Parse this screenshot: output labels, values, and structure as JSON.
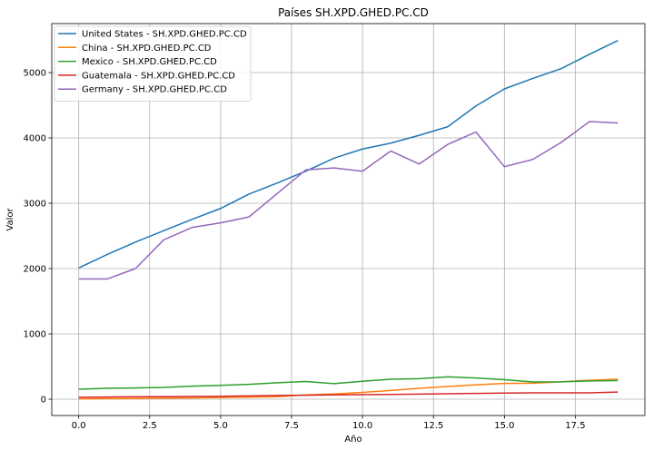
{
  "chart_data": {
    "type": "line",
    "title": "Países SH.XPD.GHED.PC.CD",
    "xlabel": "Año",
    "ylabel": "Valor",
    "xlim": [
      -0.95,
      19.95
    ],
    "ylim": [
      -250,
      5750
    ],
    "x_ticks": [
      0.0,
      2.5,
      5.0,
      7.5,
      10.0,
      12.5,
      15.0,
      17.5
    ],
    "x_tick_labels": [
      "0.0",
      "2.5",
      "5.0",
      "7.5",
      "10.0",
      "12.5",
      "15.0",
      "17.5"
    ],
    "y_ticks": [
      0,
      1000,
      2000,
      3000,
      4000,
      5000
    ],
    "y_tick_labels": [
      "0",
      "1000",
      "2000",
      "3000",
      "4000",
      "5000"
    ],
    "grid": true,
    "legend_position": "top-left",
    "x": [
      0,
      1,
      2,
      3,
      4,
      5,
      6,
      7,
      8,
      9,
      10,
      11,
      12,
      13,
      14,
      15,
      16,
      17,
      18,
      19
    ],
    "series": [
      {
        "name": "United States - SH.XPD.GHED.PC.CD",
        "color": "#1f77b4",
        "values": [
          2010,
          2215,
          2405,
          2580,
          2755,
          2920,
          3140,
          3310,
          3490,
          3690,
          3830,
          3920,
          4040,
          4170,
          4490,
          4750,
          4910,
          5060,
          5280,
          5490
        ]
      },
      {
        "name": "China - SH.XPD.GHED.PC.CD",
        "color": "#ff7f0e",
        "values": [
          5,
          8,
          11,
          15,
          19,
          26,
          31,
          39,
          66,
          80,
          104,
          134,
          167,
          194,
          220,
          242,
          245,
          265,
          290,
          305
        ]
      },
      {
        "name": "Mexico - SH.XPD.GHED.PC.CD",
        "color": "#2ca02c",
        "values": [
          152,
          167,
          172,
          180,
          200,
          212,
          228,
          252,
          270,
          238,
          275,
          305,
          315,
          342,
          325,
          298,
          263,
          265,
          280,
          285
        ]
      },
      {
        "name": "Guatemala - SH.XPD.GHED.PC.CD",
        "color": "#d62728",
        "values": [
          30,
          33,
          36,
          38,
          41,
          44,
          51,
          57,
          61,
          66,
          69,
          73,
          78,
          83,
          89,
          93,
          98,
          98,
          98,
          110
        ]
      },
      {
        "name": "Germany - SH.XPD.GHED.PC.CD",
        "color": "#9467bd",
        "values": [
          1840,
          1840,
          2000,
          2440,
          2630,
          2700,
          2790,
          3150,
          3510,
          3540,
          3490,
          3800,
          3600,
          3900,
          4090,
          3560,
          3670,
          3930,
          4250,
          4230
        ]
      }
    ]
  }
}
